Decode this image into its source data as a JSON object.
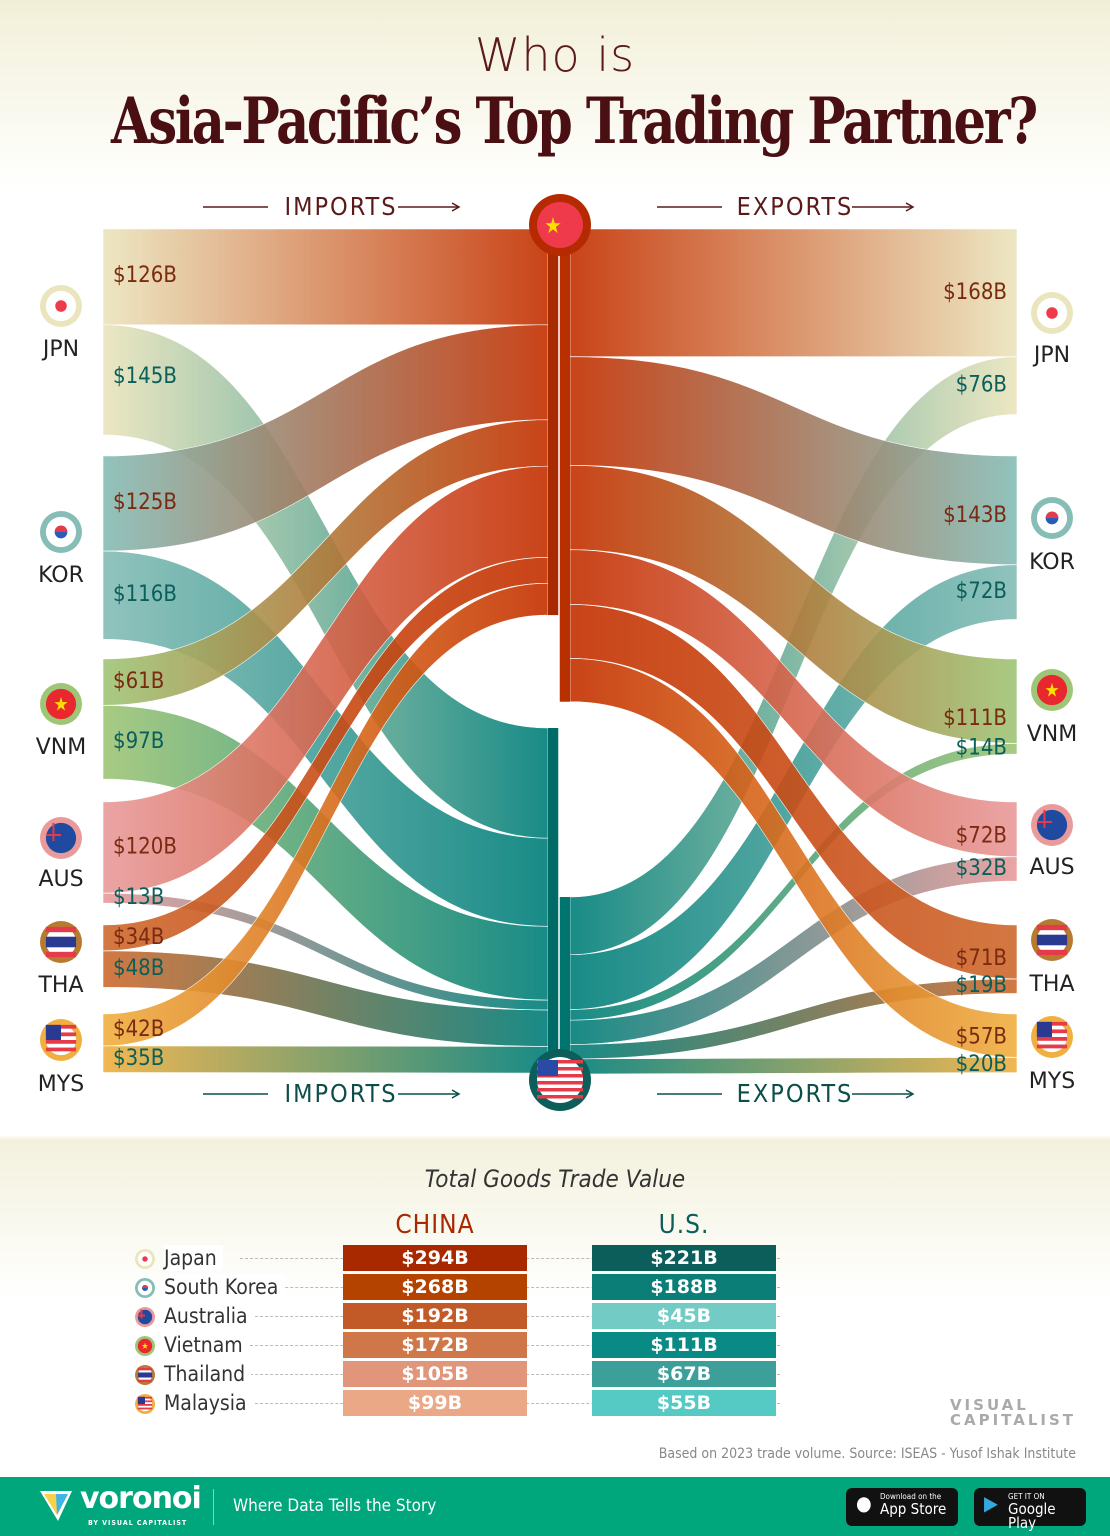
{
  "title": {
    "line1": "Who is",
    "line2": "Asia-Pacific’s Top Trading Partner?"
  },
  "headers": {
    "imports": "IMPORTS",
    "exports": "EXPORTS"
  },
  "colors": {
    "china": "#c43000",
    "us": "#007f7a",
    "JPN": "#ebe5bd",
    "KOR": "#86bdb6",
    "VNM": "#9fc677",
    "AUS": "#e99b9b",
    "THA": "#cf6a2e",
    "MYS": "#f0b040"
  },
  "chart_data": {
    "type": "sankey",
    "unit": "$B",
    "countries": [
      "JPN",
      "KOR",
      "VNM",
      "AUS",
      "THA",
      "MYS"
    ],
    "imports": {
      "china": [
        126,
        125,
        61,
        120,
        34,
        42
      ],
      "us": [
        145,
        116,
        97,
        13,
        48,
        35
      ]
    },
    "exports": {
      "china": [
        168,
        143,
        111,
        72,
        71,
        57
      ],
      "us": [
        76,
        72,
        14,
        32,
        19,
        20
      ]
    },
    "import_labels": {
      "china": [
        "$126B",
        "$125B",
        "$61B",
        "$120B",
        "$34B",
        "$42B"
      ],
      "us": [
        "$145B",
        "$116B",
        "$97B",
        "$13B",
        "$48B",
        "$35B"
      ]
    },
    "export_labels": {
      "china": [
        "$168B",
        "$143B",
        "$111B",
        "$72B",
        "$71B",
        "$57B"
      ],
      "us": [
        "$76B",
        "$72B",
        "$14B",
        "$32B",
        "$19B",
        "$20B"
      ]
    }
  },
  "table": {
    "title": "Total Goods Trade Value",
    "col_china": "CHINA",
    "col_us": "U.S.",
    "rows": [
      {
        "name": "Japan",
        "china": "$294B",
        "us": "$221B",
        "code": "JPN"
      },
      {
        "name": "South Korea",
        "china": "$268B",
        "us": "$188B",
        "code": "KOR"
      },
      {
        "name": "Australia",
        "china": "$192B",
        "us": "$45B",
        "code": "AUS"
      },
      {
        "name": "Vietnam",
        "china": "$172B",
        "us": "$111B",
        "code": "VNM"
      },
      {
        "name": "Thailand",
        "china": "$105B",
        "us": "$67B",
        "code": "THA"
      },
      {
        "name": "Malaysia",
        "china": "$99B",
        "us": "$55B",
        "code": "MYS"
      }
    ],
    "china_colors": [
      "#a82900",
      "#b54300",
      "#c25a28",
      "#cf7748",
      "#e1957a",
      "#eaa887"
    ],
    "us_colors": [
      "#0b5e5a",
      "#0b7e78",
      "#72cbc4",
      "#0a8a84",
      "#3d9f9a",
      "#55c9c4"
    ]
  },
  "source": "Based on 2023 trade volume. Source: ISEAS - Yusof Ishak Institute",
  "brand": {
    "vc_line1": "VISUAL",
    "vc_line2": "CAPITALIST",
    "voronoi": "voronoi",
    "by": "BY VISUAL CAPITALIST",
    "tagline": "Where Data Tells the Story",
    "appstore_small": "Download on the",
    "appstore": "App Store",
    "gplay_small": "GET IT ON",
    "gplay": "Google Play"
  }
}
